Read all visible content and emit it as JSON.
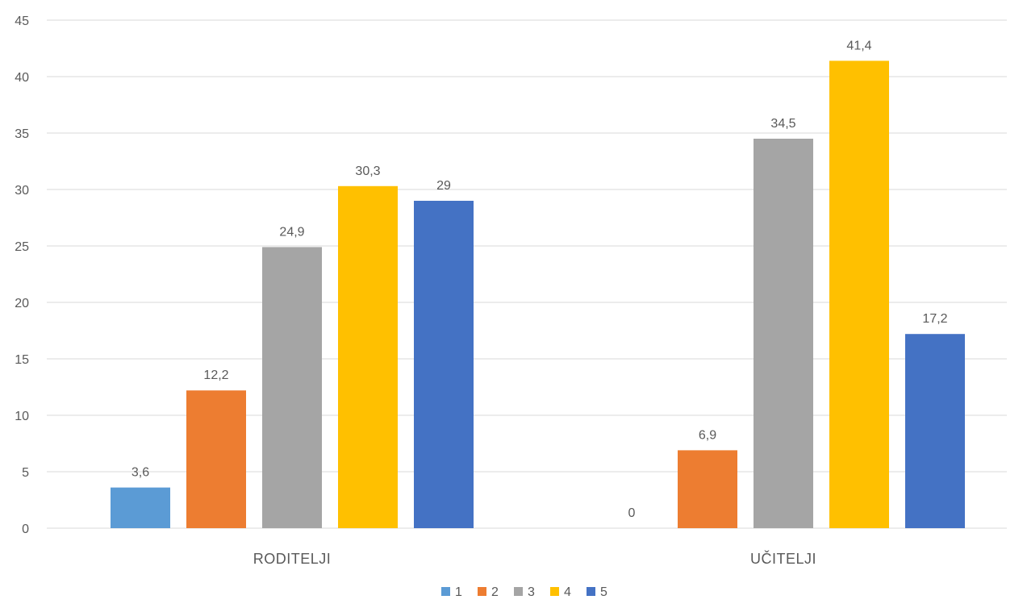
{
  "chart_data": {
    "type": "bar",
    "categories": [
      "RODITELJI",
      "UČITELJI"
    ],
    "series": [
      {
        "name": "1",
        "color": "#5b9bd5",
        "values": [
          3.6,
          0
        ]
      },
      {
        "name": "2",
        "color": "#ed7d31",
        "values": [
          12.2,
          6.9
        ]
      },
      {
        "name": "3",
        "color": "#a5a5a5",
        "values": [
          24.9,
          34.5
        ]
      },
      {
        "name": "4",
        "color": "#ffc000",
        "values": [
          30.3,
          41.4
        ]
      },
      {
        "name": "5",
        "color": "#4472c4",
        "values": [
          29,
          17.2
        ]
      }
    ],
    "data_labels": [
      [
        "3,6",
        "12,2",
        "24,9",
        "30,3",
        "29"
      ],
      [
        "0",
        "6,9",
        "34,5",
        "41,4",
        "17,2"
      ]
    ],
    "y_ticks": [
      "0",
      "5",
      "10",
      "15",
      "20",
      "25",
      "30",
      "35",
      "40",
      "45"
    ],
    "ylim": [
      0,
      45
    ],
    "grid": true,
    "gridline_color": "#d9d9d9",
    "legend_position": "bottom"
  }
}
